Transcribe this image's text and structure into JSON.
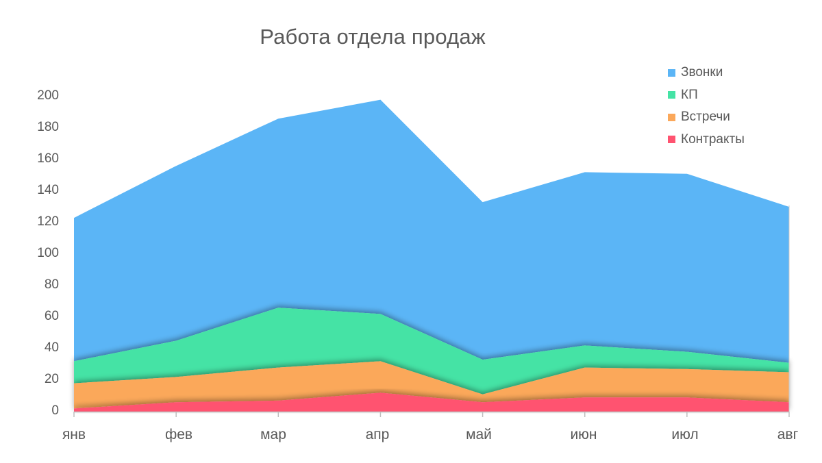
{
  "chart_data": {
    "type": "area",
    "stacked": true,
    "title": "Работа отдела продаж",
    "xlabel": "",
    "ylabel": "",
    "categories": [
      "янв",
      "фев",
      "мар",
      "апр",
      "май",
      "июн",
      "июл",
      "авг"
    ],
    "series": [
      {
        "name": "Контракты",
        "color": "#FF5370",
        "values": [
          2,
          6,
          7,
          12,
          6,
          9,
          9,
          6
        ]
      },
      {
        "name": "Встречи",
        "color": "#FBA85A",
        "values": [
          16,
          16,
          21,
          20,
          5,
          19,
          18,
          19
        ]
      },
      {
        "name": "КП",
        "color": "#45E3A5",
        "values": [
          14,
          23,
          38,
          30,
          22,
          14,
          11,
          6
        ]
      },
      {
        "name": "Звонки",
        "color": "#5BB5F6",
        "values": [
          91,
          111,
          120,
          136,
          100,
          110,
          113,
          99
        ]
      }
    ],
    "stack_totals": [
      123,
      156,
      186,
      198,
      133,
      152,
      151,
      130
    ],
    "ylim": [
      0,
      200
    ],
    "yticks": [
      0,
      20,
      40,
      60,
      80,
      100,
      120,
      140,
      160,
      180,
      200
    ],
    "grid": false,
    "legend_position": "top-right",
    "legend_order": [
      "Звонки",
      "КП",
      "Встречи",
      "Контракты"
    ]
  },
  "title": "Работа отдела продаж",
  "legend": [
    {
      "label": "Звонки",
      "color": "#5BB5F6"
    },
    {
      "label": "КП",
      "color": "#45E3A5"
    },
    {
      "label": "Встречи",
      "color": "#FBA85A"
    },
    {
      "label": "Контракты",
      "color": "#FF5370"
    }
  ],
  "yaxis": {
    "ticks": [
      "0",
      "20",
      "40",
      "60",
      "80",
      "100",
      "120",
      "140",
      "160",
      "180",
      "200"
    ]
  },
  "xaxis": {
    "ticks": [
      "янв",
      "фев",
      "мар",
      "апр",
      "май",
      "июн",
      "июл",
      "авг"
    ]
  }
}
